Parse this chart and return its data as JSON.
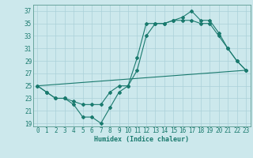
{
  "title": "",
  "xlabel": "Humidex (Indice chaleur)",
  "ylabel": "",
  "bg_color": "#cce8ec",
  "line_color": "#1a7a6e",
  "grid_color": "#aad0d8",
  "spine_color": "#5a9a90",
  "xlim": [
    -0.5,
    23.5
  ],
  "ylim": [
    18.5,
    38
  ],
  "yticks": [
    19,
    21,
    23,
    25,
    27,
    29,
    31,
    33,
    35,
    37
  ],
  "xticks": [
    0,
    1,
    2,
    3,
    4,
    5,
    6,
    7,
    8,
    9,
    10,
    11,
    12,
    13,
    14,
    15,
    16,
    17,
    18,
    19,
    20,
    21,
    22,
    23
  ],
  "line1_x": [
    0,
    1,
    2,
    3,
    4,
    5,
    6,
    7,
    8,
    9,
    10,
    11,
    12,
    13,
    14,
    15,
    16,
    17,
    18,
    19,
    20,
    21,
    22,
    23
  ],
  "line1_y": [
    25,
    24,
    23,
    23,
    22,
    20,
    20,
    19,
    21.5,
    24,
    25,
    29.5,
    35,
    35,
    35,
    35.5,
    36,
    37,
    35.5,
    35.5,
    33.5,
    31,
    29,
    27.5
  ],
  "line2_x": [
    0,
    1,
    2,
    3,
    4,
    5,
    6,
    7,
    8,
    9,
    10,
    11,
    12,
    13,
    14,
    15,
    16,
    17,
    18,
    19,
    20,
    21,
    22,
    23
  ],
  "line2_y": [
    25,
    24,
    23,
    23,
    22.5,
    22,
    22,
    22,
    24,
    25,
    25,
    27.5,
    33,
    35,
    35,
    35.5,
    35.5,
    35.5,
    35,
    35,
    33,
    31,
    29,
    27.5
  ],
  "line3_x": [
    0,
    23
  ],
  "line3_y": [
    25,
    27.5
  ],
  "figsize": [
    3.2,
    2.0
  ],
  "dpi": 100
}
